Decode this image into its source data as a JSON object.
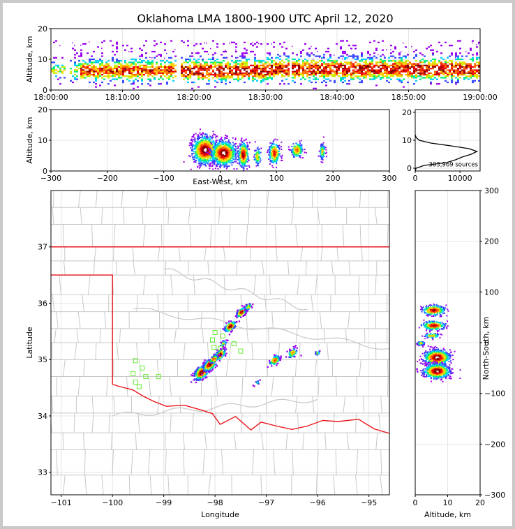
{
  "title": "Oklahoma LMA 1800-1900 UTC April 12, 2020",
  "chart_data": [
    {
      "id": "time-height",
      "type": "heatmap",
      "xlabel": "",
      "ylabel": "Altitude, km",
      "xticks": [
        "18:00:00",
        "18:10:00",
        "18:20:00",
        "18:30:00",
        "18:40:00",
        "18:50:00",
        "19:00:00"
      ],
      "xlim_minutes": [
        0,
        60
      ],
      "yticks": [
        0,
        10,
        20
      ],
      "ylim": [
        0,
        20
      ],
      "activity_gaps_minutes": [
        [
          1.8,
          2.4
        ],
        [
          17.3,
          17.9
        ],
        [
          33.1,
          33.4
        ]
      ],
      "core_altitude_km": 6
    },
    {
      "id": "east-west-altitude",
      "type": "heatmap",
      "xlabel": "East-West, km",
      "ylabel": "Altitude, km",
      "xticks": [
        -300,
        -200,
        -100,
        0,
        100,
        200,
        300
      ],
      "xlim": [
        -300,
        300
      ],
      "yticks": [
        0,
        10,
        20
      ],
      "ylim": [
        0,
        20
      ],
      "cells": [
        {
          "x": -28,
          "z": 7,
          "wx": 22,
          "wz": 4.5,
          "n": 900
        },
        {
          "x": 5,
          "z": 6,
          "wx": 22,
          "wz": 4,
          "n": 750
        },
        {
          "x": 40,
          "z": 5.5,
          "wx": 9,
          "wz": 4,
          "n": 280
        },
        {
          "x": 65,
          "z": 5,
          "wx": 6,
          "wz": 3,
          "n": 90
        },
        {
          "x": 95,
          "z": 6,
          "wx": 10,
          "wz": 3.5,
          "n": 220
        },
        {
          "x": 135,
          "z": 7,
          "wx": 11,
          "wz": 2.5,
          "n": 160
        },
        {
          "x": 180,
          "z": 6.5,
          "wx": 5,
          "wz": 2.5,
          "n": 90
        }
      ]
    },
    {
      "id": "altitude-histogram",
      "type": "line",
      "xticks": [
        0,
        10000
      ],
      "xlim": [
        0,
        14500
      ],
      "yticks": [
        0,
        10,
        20
      ],
      "ylim": [
        -1,
        21
      ],
      "annotation": "303,969 sources",
      "profile": [
        [
          0,
          -1
        ],
        [
          200,
          0
        ],
        [
          2000,
          1
        ],
        [
          7000,
          2
        ],
        [
          9000,
          3
        ],
        [
          10500,
          4
        ],
        [
          12500,
          5
        ],
        [
          13800,
          6
        ],
        [
          12000,
          7
        ],
        [
          8000,
          8
        ],
        [
          3500,
          9
        ],
        [
          900,
          10
        ],
        [
          200,
          11
        ],
        [
          0,
          12
        ]
      ]
    },
    {
      "id": "plan-view",
      "type": "scatter",
      "xlabel": "Longitude",
      "ylabel": "Latitude",
      "xticks": [
        -101,
        -100,
        -99,
        -98,
        -97,
        -96,
        -95
      ],
      "xlim": [
        -101.2,
        -94.6
      ],
      "yticks": [
        33,
        34,
        35,
        36,
        37
      ],
      "ylim": [
        32.6,
        38.0
      ],
      "cells": [
        {
          "lon": -98.28,
          "lat": 34.78,
          "r": 0.14,
          "n": 240
        },
        {
          "lon": -98.12,
          "lat": 34.92,
          "r": 0.12,
          "n": 200
        },
        {
          "lon": -97.92,
          "lat": 35.1,
          "r": 0.1,
          "n": 150
        },
        {
          "lon": -98.04,
          "lat": 35.02,
          "r": 0.08,
          "n": 90
        },
        {
          "lon": -97.72,
          "lat": 35.6,
          "r": 0.1,
          "n": 120
        },
        {
          "lon": -97.5,
          "lat": 35.85,
          "r": 0.09,
          "n": 110
        },
        {
          "lon": -97.37,
          "lat": 35.95,
          "r": 0.06,
          "n": 60
        },
        {
          "lon": -96.85,
          "lat": 35.0,
          "r": 0.1,
          "n": 80
        },
        {
          "lon": -96.5,
          "lat": 35.13,
          "r": 0.09,
          "n": 70
        },
        {
          "lon": -96.02,
          "lat": 35.13,
          "r": 0.05,
          "n": 25
        },
        {
          "lon": -97.2,
          "lat": 34.6,
          "r": 0.05,
          "n": 12
        },
        {
          "lon": -97.85,
          "lat": 35.3,
          "r": 0.06,
          "n": 35
        }
      ],
      "stations": [
        [
          -99.55,
          34.98
        ],
        [
          -99.42,
          34.85
        ],
        [
          -99.6,
          34.75
        ],
        [
          -99.35,
          34.7
        ],
        [
          -99.55,
          34.6
        ],
        [
          -99.48,
          34.52
        ],
        [
          -99.1,
          34.7
        ],
        [
          -98.0,
          35.48
        ],
        [
          -98.05,
          35.35
        ],
        [
          -98.02,
          35.22
        ],
        [
          -97.85,
          35.42
        ],
        [
          -97.63,
          35.28
        ],
        [
          -97.5,
          35.15
        ],
        [
          -97.9,
          35.2
        ]
      ]
    },
    {
      "id": "north-south-altitude",
      "type": "heatmap",
      "xlabel": "Altitude, km",
      "ylabel": "North-South, km",
      "xticks": [
        0,
        10,
        20
      ],
      "xlim": [
        0,
        20
      ],
      "yticks": [
        -300,
        -200,
        -100,
        0,
        100,
        200,
        300
      ],
      "ylim": [
        -300,
        300
      ],
      "cells": [
        {
          "y": 65,
          "z": 5.5,
          "wy": 10,
          "wz": 3.5,
          "n": 220
        },
        {
          "y": 35,
          "z": 5.5,
          "wy": 9,
          "wz": 3.5,
          "n": 220
        },
        {
          "y": 15,
          "z": 5,
          "wy": 5,
          "wz": 2.5,
          "n": 80
        },
        {
          "y": 0,
          "z": 1.5,
          "wy": 4,
          "wz": 1.2,
          "n": 60
        },
        {
          "y": -28,
          "z": 6.5,
          "wy": 15,
          "wz": 4,
          "n": 700
        },
        {
          "y": -55,
          "z": 6.5,
          "wy": 14,
          "wz": 4,
          "n": 650
        }
      ]
    }
  ],
  "map_lines": {
    "state_border_color": "#e8141a",
    "county_line_color": "#c8c8c8"
  },
  "colors": {
    "station": "#66ee33",
    "density_scale": [
      "#9900ee",
      "#3344ff",
      "#00ccff",
      "#00ee77",
      "#ccee00",
      "#ffcc00",
      "#ff6600",
      "#ee0000",
      "#880000",
      "#ffffff"
    ]
  }
}
